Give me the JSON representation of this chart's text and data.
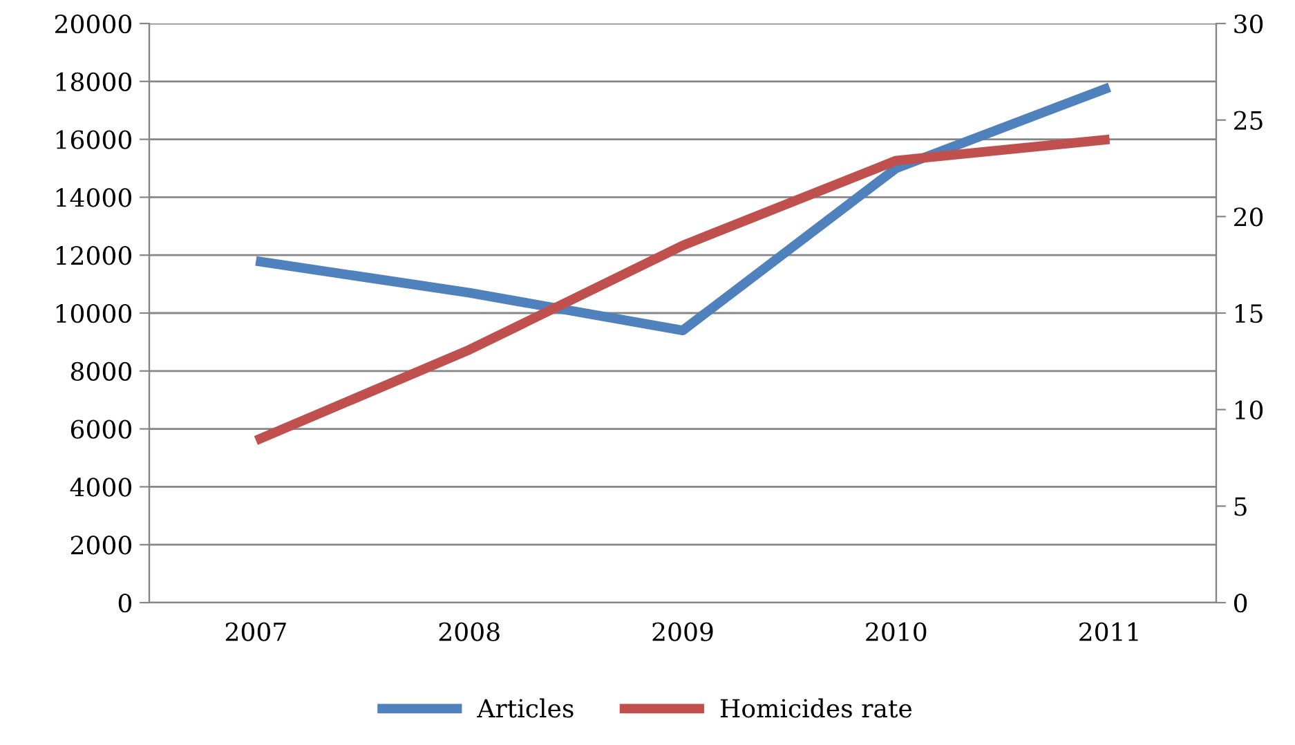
{
  "chart_data": {
    "type": "line",
    "categories": [
      "2007",
      "2008",
      "2009",
      "2010",
      "2011"
    ],
    "series": [
      {
        "name": "Articles",
        "color": "#4f81bd",
        "values": [
          11800,
          10700,
          9400,
          15000,
          17800
        ]
      },
      {
        "name": "Homicides rate",
        "color": "#c0504d",
        "axis": "y2",
        "values": [
          8.4,
          13.1,
          18.5,
          22.9,
          24.0
        ]
      }
    ],
    "ylim": [
      0,
      20000
    ],
    "yticks": [
      0,
      2000,
      4000,
      6000,
      8000,
      10000,
      12000,
      14000,
      16000,
      18000,
      20000
    ],
    "y2lim": [
      0,
      30
    ],
    "y2ticks": [
      0,
      5,
      10,
      15,
      20,
      25,
      30
    ],
    "grid": "y",
    "legend": "bottom",
    "marker": "none",
    "line_style": "solid"
  }
}
